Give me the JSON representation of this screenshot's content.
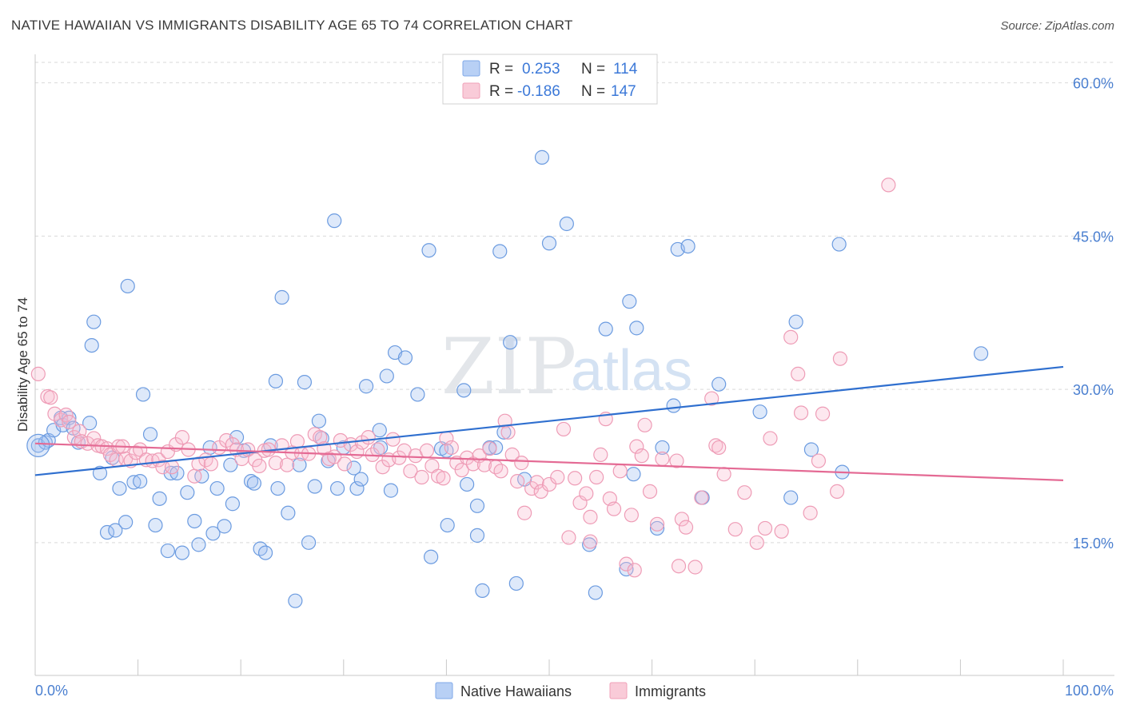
{
  "title": "NATIVE HAWAIIAN VS IMMIGRANTS DISABILITY AGE 65 TO 74 CORRELATION CHART",
  "source": "Source: ZipAtlas.com",
  "watermark": {
    "zip": "ZIP",
    "atlas": "atlas"
  },
  "legend_top": {
    "r_label": "R =",
    "n_label": "N =",
    "rows": [
      {
        "series": "Native Hawaiians",
        "r": "0.253",
        "n": "114",
        "color": "#7fa8e8",
        "fill": "#b8d0f5"
      },
      {
        "series": "Immigrants",
        "r": "-0.186",
        "n": "147",
        "color": "#f0a0b8",
        "fill": "#f9cbd8"
      }
    ]
  },
  "colors": {
    "blue_stroke": "#6b9be0",
    "blue_fill": "rgba(160,192,240,0.35)",
    "blue_line": "#2f6fcf",
    "pink_stroke": "#ee9cb6",
    "pink_fill": "rgba(248,190,210,0.35)",
    "pink_line": "#e46a94",
    "axis_text": "#4a7fd0",
    "grid": "#d9d9d9"
  },
  "chart_data": {
    "type": "scatter",
    "title": "NATIVE HAWAIIAN VS IMMIGRANTS DISABILITY AGE 65 TO 74 CORRELATION CHART",
    "xlabel": "",
    "ylabel": "Disability Age 65 to 74",
    "xlim": [
      0,
      100
    ],
    "ylim": [
      2,
      62
    ],
    "x_tick_labels": [
      "0.0%",
      "100.0%"
    ],
    "y_ticks": [
      15,
      30,
      45,
      60
    ],
    "y_tick_labels": [
      "15.0%",
      "30.0%",
      "45.0%",
      "60.0%"
    ],
    "grid": "horizontal dashed",
    "legend_position": "top-center and bottom-center",
    "series": [
      {
        "name": "Native Hawaiians",
        "trend": {
          "x": [
            0,
            100
          ],
          "y": [
            21.6,
            32.2
          ]
        },
        "points": [
          [
            0.3,
            24.5
          ],
          [
            1.0,
            24.8
          ],
          [
            1.3,
            25.0
          ],
          [
            1.8,
            26.0
          ],
          [
            2.5,
            27.2
          ],
          [
            2.7,
            26.5
          ],
          [
            3.3,
            27.2
          ],
          [
            3.7,
            26.2
          ],
          [
            4.2,
            24.8
          ],
          [
            5.3,
            26.7
          ],
          [
            6.3,
            21.8
          ],
          [
            5.5,
            34.3
          ],
          [
            5.7,
            36.6
          ],
          [
            7.0,
            16.0
          ],
          [
            7.5,
            23.3
          ],
          [
            7.8,
            16.2
          ],
          [
            8.2,
            20.3
          ],
          [
            8.8,
            17.0
          ],
          [
            9.0,
            40.1
          ],
          [
            9.6,
            20.9
          ],
          [
            10.2,
            21.0
          ],
          [
            10.5,
            29.5
          ],
          [
            11.2,
            25.6
          ],
          [
            11.7,
            16.7
          ],
          [
            12.1,
            19.3
          ],
          [
            12.9,
            14.2
          ],
          [
            13.2,
            21.8
          ],
          [
            13.8,
            21.8
          ],
          [
            14.3,
            14.0
          ],
          [
            14.8,
            19.9
          ],
          [
            15.5,
            17.1
          ],
          [
            15.9,
            14.8
          ],
          [
            16.2,
            21.5
          ],
          [
            17.0,
            24.3
          ],
          [
            17.3,
            15.9
          ],
          [
            17.7,
            20.3
          ],
          [
            18.4,
            16.6
          ],
          [
            19.0,
            22.6
          ],
          [
            19.2,
            18.8
          ],
          [
            19.6,
            25.3
          ],
          [
            20.3,
            24.0
          ],
          [
            21.0,
            21.0
          ],
          [
            21.3,
            20.8
          ],
          [
            21.9,
            14.4
          ],
          [
            22.4,
            14.0
          ],
          [
            22.9,
            24.5
          ],
          [
            23.4,
            30.8
          ],
          [
            23.6,
            20.3
          ],
          [
            24.0,
            39.0
          ],
          [
            24.6,
            17.9
          ],
          [
            25.3,
            9.3
          ],
          [
            25.7,
            22.6
          ],
          [
            26.2,
            30.7
          ],
          [
            26.6,
            15.0
          ],
          [
            27.2,
            20.5
          ],
          [
            27.6,
            26.9
          ],
          [
            27.9,
            25.2
          ],
          [
            28.5,
            23.0
          ],
          [
            29.1,
            46.5
          ],
          [
            29.4,
            20.3
          ],
          [
            30.0,
            24.3
          ],
          [
            31.0,
            22.3
          ],
          [
            31.3,
            20.3
          ],
          [
            31.7,
            21.2
          ],
          [
            32.2,
            30.3
          ],
          [
            33.5,
            26.0
          ],
          [
            33.6,
            24.3
          ],
          [
            34.2,
            31.3
          ],
          [
            34.6,
            20.1
          ],
          [
            35.0,
            33.6
          ],
          [
            36.0,
            33.1
          ],
          [
            37.2,
            29.5
          ],
          [
            38.3,
            43.6
          ],
          [
            38.5,
            13.6
          ],
          [
            39.5,
            24.2
          ],
          [
            40.0,
            24.0
          ],
          [
            40.1,
            16.7
          ],
          [
            41.7,
            29.9
          ],
          [
            42.0,
            20.7
          ],
          [
            43.0,
            15.7
          ],
          [
            43.0,
            18.6
          ],
          [
            43.5,
            10.3
          ],
          [
            44.2,
            24.3
          ],
          [
            44.8,
            24.3
          ],
          [
            45.2,
            43.5
          ],
          [
            45.6,
            25.8
          ],
          [
            46.2,
            34.6
          ],
          [
            46.8,
            11.0
          ],
          [
            47.6,
            21.2
          ],
          [
            49.3,
            52.7
          ],
          [
            50.0,
            44.3
          ],
          [
            51.7,
            46.2
          ],
          [
            53.9,
            14.8
          ],
          [
            54.5,
            10.1
          ],
          [
            55.5,
            35.9
          ],
          [
            57.5,
            12.4
          ],
          [
            57.8,
            38.6
          ],
          [
            58.2,
            21.7
          ],
          [
            58.5,
            36.0
          ],
          [
            60.5,
            16.4
          ],
          [
            61.0,
            24.3
          ],
          [
            62.1,
            28.4
          ],
          [
            62.5,
            43.7
          ],
          [
            63.5,
            44.0
          ],
          [
            64.9,
            19.4
          ],
          [
            66.5,
            30.5
          ],
          [
            70.5,
            27.8
          ],
          [
            73.5,
            19.4
          ],
          [
            74.0,
            36.6
          ],
          [
            75.5,
            24.1
          ],
          [
            78.2,
            44.2
          ],
          [
            78.5,
            21.9
          ],
          [
            92.0,
            33.5
          ]
        ]
      },
      {
        "name": "Immigrants",
        "trend": {
          "x": [
            0,
            100
          ],
          "y": [
            24.7,
            21.1
          ]
        },
        "points": [
          [
            0.3,
            31.5
          ],
          [
            1.2,
            29.3
          ],
          [
            1.5,
            29.2
          ],
          [
            1.9,
            27.6
          ],
          [
            2.5,
            27.0
          ],
          [
            3.0,
            27.5
          ],
          [
            3.3,
            26.8
          ],
          [
            3.8,
            25.3
          ],
          [
            4.3,
            25.9
          ],
          [
            4.5,
            24.9
          ],
          [
            5.1,
            24.7
          ],
          [
            5.7,
            25.2
          ],
          [
            6.1,
            24.5
          ],
          [
            6.5,
            24.4
          ],
          [
            7.0,
            24.2
          ],
          [
            7.3,
            23.6
          ],
          [
            7.9,
            23.1
          ],
          [
            8.1,
            24.4
          ],
          [
            8.5,
            24.4
          ],
          [
            8.8,
            23.2
          ],
          [
            9.3,
            23.0
          ],
          [
            9.8,
            23.8
          ],
          [
            10.2,
            24.1
          ],
          [
            10.8,
            23.1
          ],
          [
            11.4,
            23.0
          ],
          [
            12.0,
            23.1
          ],
          [
            12.4,
            22.4
          ],
          [
            12.9,
            23.9
          ],
          [
            13.3,
            22.4
          ],
          [
            13.7,
            24.6
          ],
          [
            14.3,
            25.3
          ],
          [
            14.9,
            24.1
          ],
          [
            15.5,
            21.5
          ],
          [
            15.9,
            22.7
          ],
          [
            16.6,
            23.1
          ],
          [
            17.1,
            22.7
          ],
          [
            17.9,
            24.3
          ],
          [
            18.6,
            25.0
          ],
          [
            19.2,
            24.6
          ],
          [
            19.6,
            24.1
          ],
          [
            20.1,
            23.2
          ],
          [
            20.7,
            24.1
          ],
          [
            21.4,
            23.1
          ],
          [
            21.8,
            22.5
          ],
          [
            22.3,
            24.0
          ],
          [
            22.7,
            24.1
          ],
          [
            23.4,
            22.8
          ],
          [
            24.0,
            24.5
          ],
          [
            24.5,
            22.6
          ],
          [
            25.0,
            23.8
          ],
          [
            25.5,
            24.9
          ],
          [
            25.9,
            23.7
          ],
          [
            26.6,
            23.7
          ],
          [
            27.2,
            25.6
          ],
          [
            27.7,
            25.3
          ],
          [
            28.1,
            24.2
          ],
          [
            28.6,
            23.2
          ],
          [
            29.1,
            23.4
          ],
          [
            29.7,
            25.0
          ],
          [
            30.1,
            22.7
          ],
          [
            30.7,
            24.6
          ],
          [
            31.3,
            23.9
          ],
          [
            31.8,
            24.8
          ],
          [
            32.4,
            25.3
          ],
          [
            32.8,
            23.6
          ],
          [
            33.3,
            24.1
          ],
          [
            33.8,
            22.4
          ],
          [
            34.4,
            23.1
          ],
          [
            34.8,
            25.1
          ],
          [
            35.4,
            23.3
          ],
          [
            35.9,
            24.0
          ],
          [
            36.5,
            22.0
          ],
          [
            37.0,
            23.5
          ],
          [
            37.6,
            21.4
          ],
          [
            38.1,
            24.0
          ],
          [
            38.6,
            22.5
          ],
          [
            39.2,
            21.5
          ],
          [
            39.7,
            21.3
          ],
          [
            40.0,
            25.2
          ],
          [
            40.5,
            24.3
          ],
          [
            41.0,
            22.8
          ],
          [
            41.5,
            22.1
          ],
          [
            42.0,
            23.3
          ],
          [
            42.6,
            22.7
          ],
          [
            43.2,
            23.5
          ],
          [
            43.7,
            22.6
          ],
          [
            44.2,
            24.2
          ],
          [
            44.8,
            22.4
          ],
          [
            45.3,
            22.0
          ],
          [
            45.7,
            26.9
          ],
          [
            46.0,
            25.8
          ],
          [
            46.4,
            23.6
          ],
          [
            46.9,
            21.0
          ],
          [
            47.3,
            22.8
          ],
          [
            47.6,
            17.9
          ],
          [
            48.3,
            20.3
          ],
          [
            48.8,
            20.9
          ],
          [
            49.2,
            20.0
          ],
          [
            50.0,
            20.7
          ],
          [
            50.8,
            21.4
          ],
          [
            51.4,
            26.1
          ],
          [
            51.9,
            15.5
          ],
          [
            52.5,
            21.3
          ],
          [
            53.0,
            18.9
          ],
          [
            53.6,
            19.8
          ],
          [
            54.0,
            15.1
          ],
          [
            54.6,
            21.4
          ],
          [
            55.0,
            23.6
          ],
          [
            55.5,
            27.1
          ],
          [
            55.9,
            19.3
          ],
          [
            56.3,
            18.3
          ],
          [
            56.9,
            22.0
          ],
          [
            57.5,
            12.9
          ],
          [
            58.0,
            17.7
          ],
          [
            58.5,
            24.4
          ],
          [
            59.0,
            23.5
          ],
          [
            59.3,
            26.5
          ],
          [
            59.8,
            20.0
          ],
          [
            60.5,
            16.8
          ],
          [
            61.0,
            23.2
          ],
          [
            62.4,
            23.0
          ],
          [
            62.9,
            17.3
          ],
          [
            63.3,
            16.5
          ],
          [
            64.2,
            12.6
          ],
          [
            64.8,
            19.4
          ],
          [
            65.8,
            29.1
          ],
          [
            66.2,
            24.5
          ],
          [
            66.5,
            24.3
          ],
          [
            67.0,
            21.7
          ],
          [
            68.1,
            16.3
          ],
          [
            69.0,
            19.9
          ],
          [
            70.2,
            15.0
          ],
          [
            71.0,
            16.4
          ],
          [
            71.5,
            25.2
          ],
          [
            72.6,
            16.1
          ],
          [
            73.5,
            35.1
          ],
          [
            74.2,
            31.5
          ],
          [
            74.5,
            27.7
          ],
          [
            75.4,
            17.9
          ],
          [
            76.2,
            23.0
          ],
          [
            76.6,
            27.6
          ],
          [
            78.0,
            20.0
          ],
          [
            78.3,
            33.0
          ],
          [
            83.0,
            50.0
          ],
          [
            62.6,
            12.7
          ],
          [
            54.0,
            17.5
          ],
          [
            58.3,
            12.3
          ]
        ]
      }
    ]
  },
  "bottom_legend": [
    "Native Hawaiians",
    "Immigrants"
  ]
}
